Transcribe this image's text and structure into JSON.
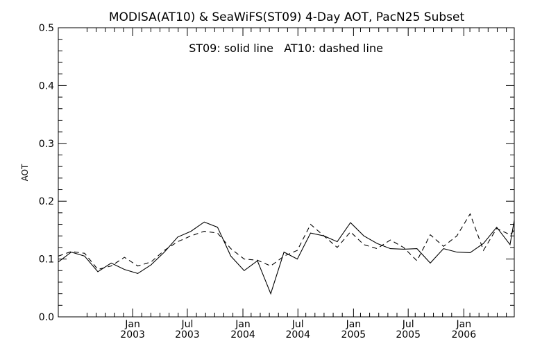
{
  "chart_data": {
    "type": "line",
    "title": "MODISA(AT10) & SeaWiFS(ST09) 4-Day AOT, PacN25 Subset",
    "annotation": "ST09: solid line   AT10: dashed line",
    "xlabel": "",
    "ylabel": "AOT",
    "ylim": [
      0.0,
      0.5
    ],
    "xlim": [
      "2002-04-30",
      "2006-06-17"
    ],
    "y_ticks": [
      "0.0",
      "0.1",
      "0.2",
      "0.3",
      "0.4",
      "0.5"
    ],
    "x_ticks": [
      {
        "date": "2003-01-01",
        "month": "Jan",
        "year": "2003"
      },
      {
        "date": "2003-07-01",
        "month": "Jul",
        "year": "2003"
      },
      {
        "date": "2004-01-01",
        "month": "Jan",
        "year": "2004"
      },
      {
        "date": "2004-07-01",
        "month": "Jul",
        "year": "2004"
      },
      {
        "date": "2005-01-01",
        "month": "Jan",
        "year": "2005"
      },
      {
        "date": "2005-07-01",
        "month": "Jul",
        "year": "2005"
      },
      {
        "date": "2006-01-01",
        "month": "Jan",
        "year": "2006"
      }
    ],
    "minor_ticks_per_interval": 6,
    "grid": false,
    "series": [
      {
        "name": "ST09",
        "style": "solid",
        "color": "#000000",
        "x": [
          "2002-04-30",
          "2002-06-12",
          "2002-07-26",
          "2002-09-08",
          "2002-10-22",
          "2002-12-05",
          "2003-01-18",
          "2003-03-03",
          "2003-04-16",
          "2003-05-30",
          "2003-07-13",
          "2003-08-26",
          "2003-10-09",
          "2003-11-22",
          "2004-01-05",
          "2004-02-18",
          "2004-04-02",
          "2004-05-16",
          "2004-06-29",
          "2004-08-12",
          "2004-09-25",
          "2004-11-08",
          "2004-12-22",
          "2005-02-04",
          "2005-03-20",
          "2005-05-03",
          "2005-06-16",
          "2005-07-30",
          "2005-09-12",
          "2005-10-26",
          "2005-12-09",
          "2006-01-22",
          "2006-03-07",
          "2006-04-20",
          "2006-06-03",
          "2006-06-17"
        ],
        "y": [
          0.095,
          0.112,
          0.105,
          0.078,
          0.093,
          0.082,
          0.075,
          0.09,
          0.112,
          0.138,
          0.148,
          0.164,
          0.155,
          0.105,
          0.08,
          0.097,
          0.04,
          0.112,
          0.1,
          0.145,
          0.14,
          0.13,
          0.163,
          0.14,
          0.127,
          0.118,
          0.117,
          0.118,
          0.093,
          0.118,
          0.112,
          0.111,
          0.127,
          0.155,
          0.125,
          0.167
        ]
      },
      {
        "name": "AT10",
        "style": "dashed",
        "color": "#000000",
        "x": [
          "2002-04-30",
          "2002-06-12",
          "2002-07-26",
          "2002-09-08",
          "2002-10-22",
          "2002-12-05",
          "2003-01-18",
          "2003-03-03",
          "2003-04-16",
          "2003-05-30",
          "2003-07-13",
          "2003-08-26",
          "2003-10-09",
          "2003-11-22",
          "2004-01-05",
          "2004-02-18",
          "2004-04-02",
          "2004-05-16",
          "2004-06-29",
          "2004-08-12",
          "2004-09-25",
          "2004-11-08",
          "2004-12-22",
          "2005-02-04",
          "2005-03-20",
          "2005-05-03",
          "2005-06-16",
          "2005-07-30",
          "2005-09-12",
          "2005-10-26",
          "2005-12-09",
          "2006-01-22",
          "2006-03-07",
          "2006-04-20",
          "2006-06-03",
          "2006-06-17"
        ],
        "y": [
          0.105,
          0.113,
          0.11,
          0.082,
          0.088,
          0.103,
          0.088,
          0.095,
          0.115,
          0.13,
          0.14,
          0.148,
          0.145,
          0.118,
          0.1,
          0.098,
          0.088,
          0.105,
          0.115,
          0.16,
          0.14,
          0.12,
          0.147,
          0.125,
          0.118,
          0.133,
          0.12,
          0.097,
          0.142,
          0.122,
          0.14,
          0.178,
          0.115,
          0.153,
          0.142,
          0.15
        ]
      }
    ]
  }
}
